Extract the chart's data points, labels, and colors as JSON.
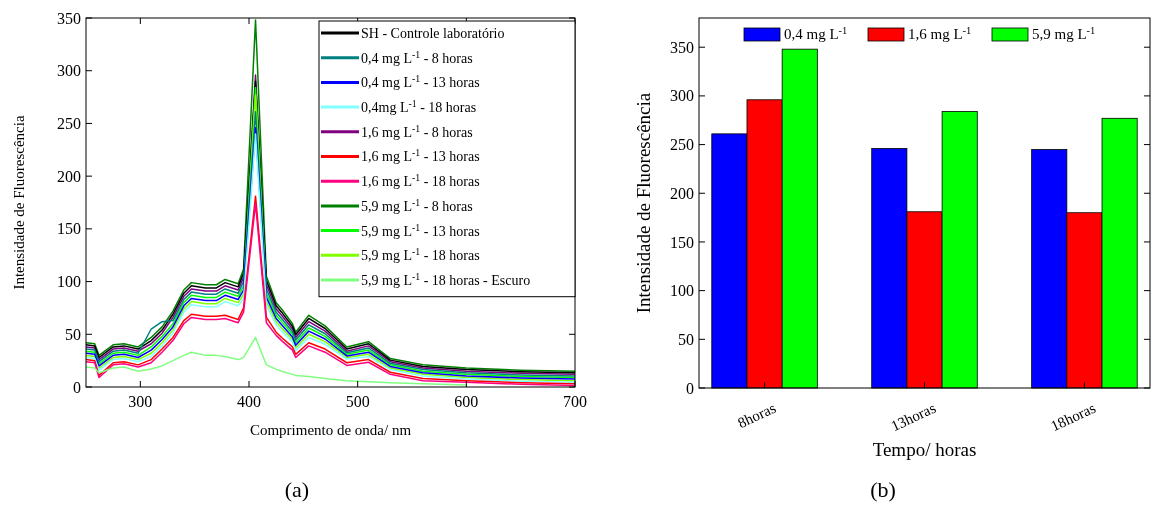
{
  "chart_data": [
    {
      "type": "line",
      "xlabel": "Comprimento de onda/ nm",
      "ylabel": "Intensidade de Fluorescência",
      "annotations": [
        "(a)"
      ],
      "xlim": [
        250,
        700
      ],
      "ylim": [
        0,
        350
      ],
      "xticks": [
        300,
        400,
        500,
        600,
        700
      ],
      "yticks": [
        0,
        50,
        100,
        150,
        200,
        250,
        300,
        350
      ],
      "legend": "top right",
      "grid": false,
      "line_style": "solid",
      "marker": "none",
      "x": [
        250,
        258,
        262,
        275,
        285,
        298,
        310,
        320,
        330,
        340,
        347,
        360,
        370,
        378,
        390,
        395,
        406,
        416,
        425,
        430,
        440,
        443,
        455,
        470,
        490,
        510,
        530,
        560,
        600,
        650,
        700
      ],
      "series": [
        {
          "name": "SH - Controle laboratório",
          "color": "#000000",
          "values": [
            40,
            39,
            28,
            38,
            39,
            36,
            44,
            54,
            69,
            89,
            96,
            94,
            94,
            99,
            95,
            108,
            290,
            101,
            77,
            71,
            57.5,
            49.5,
            65,
            55.5,
            36,
            41,
            25.5,
            19.5,
            16.5,
            14.5,
            13.5
          ]
        },
        {
          "name": "0,4 mg L$^{-1}$ - 8 horas",
          "color": "#008080",
          "values": [
            36,
            35,
            24,
            34,
            35,
            32,
            55,
            62,
            63,
            83,
            90,
            88,
            88,
            93,
            89,
            100,
            261,
            93,
            71,
            65,
            52.5,
            44.5,
            59,
            50.5,
            32.5,
            37,
            22.5,
            16.5,
            13.5,
            11.5,
            10.5
          ]
        },
        {
          "name": "0,4 mg L$^{-1}$ - 13 horas",
          "color": "#0000ff",
          "values": [
            32,
            31,
            20,
            30,
            31,
            28,
            35,
            45,
            57,
            77,
            84,
            82,
            82,
            87,
            83,
            92,
            246,
            85,
            65,
            59,
            47.5,
            39.5,
            53,
            45.5,
            29.5,
            33,
            19.5,
            13.5,
            10.5,
            8.5,
            7.5
          ]
        },
        {
          "name": "0,4mg L$^{-1}$ - 18 horas",
          "color": "#80ffff",
          "values": [
            28,
            27,
            16,
            26,
            27,
            24,
            29,
            39,
            51,
            71,
            78,
            76,
            76,
            81,
            77,
            84,
            240,
            77,
            59,
            53,
            42.5,
            34.5,
            47,
            40.5,
            26.5,
            29,
            16.5,
            10.5,
            7.5,
            5.5,
            4.5
          ]
        },
        {
          "name": "1,6 mg L$^{-1}$ - 8 horas",
          "color": "#800080",
          "values": [
            38,
            37,
            26,
            36,
            37,
            34,
            41,
            51,
            66,
            86,
            93,
            91,
            91,
            96,
            92,
            104,
            296,
            97,
            74,
            68,
            55,
            47,
            62,
            53,
            34,
            39,
            24,
            18,
            15,
            13,
            12
          ]
        },
        {
          "name": "1,6 mg L$^{-1}$ - 13 horas",
          "color": "#ff0000",
          "values": [
            26,
            25,
            11,
            23,
            24,
            21,
            26,
            36,
            47,
            63,
            69,
            67,
            67,
            68,
            64,
            75,
            181,
            66,
            52,
            47,
            38,
            31,
            42,
            36,
            23,
            26,
            14,
            8,
            6,
            4,
            3
          ]
        },
        {
          "name": "1,6 mg L$^{-1}$ - 18 horas",
          "color": "#ff0080",
          "values": [
            24,
            23,
            9,
            21,
            22,
            19,
            23,
            33,
            44,
            60,
            66,
            64,
            64,
            65,
            61,
            71,
            174,
            61,
            49,
            44,
            35,
            28,
            39,
            33,
            20.5,
            23.5,
            12,
            6,
            4.5,
            2.5,
            1.5
          ]
        },
        {
          "name": "5,9 mg L$^{-1}$ - 8 horas",
          "color": "#008000",
          "values": [
            42,
            41,
            30,
            40,
            41,
            38,
            47,
            57,
            72,
            92,
            99,
            97,
            97,
            102,
            98,
            112,
            348,
            105,
            80,
            74,
            60,
            52,
            68,
            58,
            38,
            43,
            27,
            21,
            18,
            16,
            15
          ]
        },
        {
          "name": "5,9 mg L$^{-1}$ - 13 horas",
          "color": "#00ff00",
          "values": [
            34,
            33,
            22,
            32,
            33,
            30,
            38,
            48,
            60,
            80,
            87,
            85,
            85,
            90,
            86,
            96,
            284,
            89,
            68,
            62,
            50,
            42,
            56,
            48,
            31,
            35,
            21,
            15,
            12,
            10,
            9
          ]
        },
        {
          "name": "5,9 mg L$^{-1}$ - 18 horas",
          "color": "#80ff00",
          "values": [
            30,
            29,
            18,
            28,
            29,
            26,
            32,
            42,
            54,
            74,
            81,
            79,
            79,
            84,
            80,
            88,
            277,
            81,
            62,
            56,
            45,
            37,
            50,
            43,
            28,
            31,
            18,
            12,
            9,
            7,
            6
          ]
        },
        {
          "name": "5,9 mg L$^{-1}$ - 18 horas - Escuro",
          "color": "#80ff80",
          "values": [
            19,
            18,
            13.5,
            18,
            19,
            15,
            17,
            20,
            25,
            30,
            33,
            30,
            30,
            29,
            26,
            28,
            47,
            21,
            17,
            15,
            12,
            11,
            10,
            8,
            6,
            5,
            4,
            3,
            2,
            null,
            null
          ]
        }
      ]
    },
    {
      "type": "bar",
      "xlabel": "Tempo/ horas",
      "ylabel": "Intensidade de Fluorescência",
      "annotations": [
        "(b)"
      ],
      "categories": [
        "8horas",
        "13horas",
        "18horas"
      ],
      "ylim": [
        0,
        380
      ],
      "yticks": [
        0,
        50,
        100,
        150,
        200,
        250,
        300,
        350
      ],
      "legend": "top",
      "grid": false,
      "series": [
        {
          "name": "0,4 mg L$^{-1}$",
          "color": "#0000ff",
          "values": [
            261,
            246,
            245
          ]
        },
        {
          "name": "1,6 mg L$^{-1}$",
          "color": "#ff0000",
          "values": [
            296,
            181,
            180
          ]
        },
        {
          "name": "5,9 mg L$^{-1}$",
          "color": "#00ff00",
          "values": [
            348,
            284,
            277
          ]
        }
      ]
    }
  ]
}
